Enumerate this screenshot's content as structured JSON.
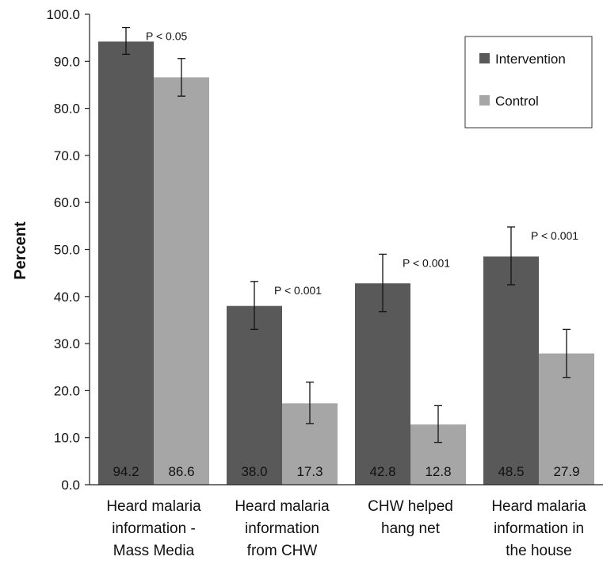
{
  "chart_data": {
    "type": "bar",
    "title": "",
    "xlabel": "",
    "ylabel": "Percent",
    "ylim": [
      0,
      100
    ],
    "yticks": [
      "0.0",
      "10.0",
      "20.0",
      "30.0",
      "40.0",
      "50.0",
      "60.0",
      "70.0",
      "80.0",
      "90.0",
      "100.0"
    ],
    "grid": false,
    "legend_position": "top-right",
    "categories": [
      [
        "Heard malaria",
        "information -",
        "Mass Media"
      ],
      [
        "Heard malaria",
        "information",
        "from CHW"
      ],
      [
        "CHW helped",
        "hang net"
      ],
      [
        "Heard malaria",
        "information in",
        "the house"
      ]
    ],
    "series": [
      {
        "name": "Intervention",
        "color": "#595959",
        "values": [
          94.2,
          38.0,
          42.8,
          48.5
        ],
        "labels": [
          "94.2",
          "38.0",
          "42.8",
          "48.5"
        ],
        "error_low": [
          91.5,
          33.0,
          36.8,
          42.5
        ],
        "error_high": [
          97.2,
          43.2,
          49.0,
          54.8
        ]
      },
      {
        "name": "Control",
        "color": "#a6a6a6",
        "values": [
          86.6,
          17.3,
          12.8,
          27.9
        ],
        "labels": [
          "86.6",
          "17.3",
          "12.8",
          "27.9"
        ],
        "error_low": [
          82.6,
          13.0,
          9.0,
          22.8
        ],
        "error_high": [
          90.6,
          21.8,
          16.8,
          33.0
        ]
      }
    ],
    "annotations": [
      "P < 0.05",
      "P < 0.001",
      "P < 0.001",
      "P < 0.001"
    ]
  }
}
